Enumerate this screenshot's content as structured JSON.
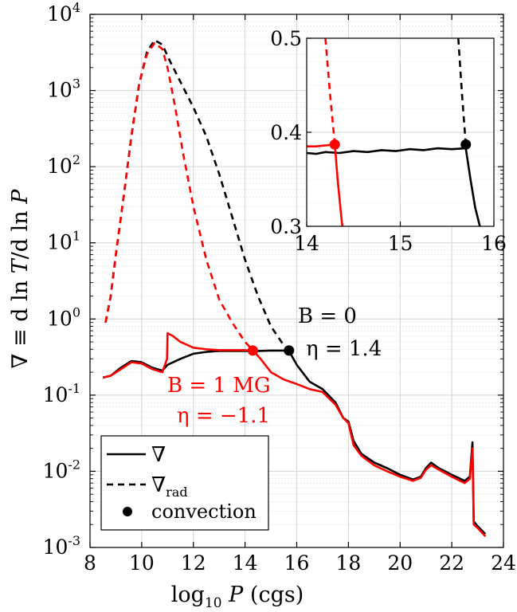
{
  "chart_data": [
    {
      "type": "line",
      "xlabel": "log₁₀ P  (cgs)",
      "ylabel": "∇ ≡ d ln T / d ln P",
      "xlim": [
        8,
        24
      ],
      "ylim": [
        0.001,
        10000
      ],
      "yscale": "log",
      "grid": true,
      "xticks": [
        8,
        10,
        12,
        14,
        16,
        18,
        20,
        22,
        24
      ],
      "xtick_labels": [
        "8",
        "10",
        "12",
        "14",
        "16",
        "18",
        "20",
        "22",
        "24"
      ],
      "ytick_exponents": [
        -3,
        -2,
        -1,
        0,
        1,
        2,
        3,
        4
      ],
      "legend": {
        "position": "bottom-left",
        "entries": [
          {
            "label": "∇",
            "style": "solid"
          },
          {
            "label": "∇",
            "sub": "rad",
            "style": "dashed"
          },
          {
            "label": "convection",
            "style": "marker"
          }
        ]
      },
      "annotations": [
        {
          "text": "B = 0",
          "color": "#000000"
        },
        {
          "text": "η = 1.4",
          "color": "#000000"
        },
        {
          "text": "B = 1 MG",
          "color": "#ff0000"
        },
        {
          "text": "η = −1.1",
          "color": "#ff0000"
        }
      ],
      "series": [
        {
          "color": "#000000",
          "style": "dashed",
          "x": [
            8.6,
            8.8,
            9.0,
            9.3,
            9.6,
            9.9,
            10.2,
            10.5,
            10.8,
            11.1,
            11.5,
            12.0,
            12.5,
            13.0,
            13.5,
            14.0,
            14.5,
            15.0,
            15.5,
            15.7
          ],
          "y": [
            0.9,
            2.0,
            7,
            40,
            250,
            1200,
            3200,
            4600,
            4000,
            2400,
            1300,
            600,
            250,
            80,
            22,
            6,
            2,
            0.8,
            0.45,
            0.39
          ]
        },
        {
          "color": "#000000",
          "style": "solid",
          "x": [
            8.5,
            8.8,
            9.2,
            9.6,
            10.0,
            10.4,
            10.8,
            11.0,
            11.5,
            12.0,
            12.5,
            13.0,
            13.5,
            14.0,
            14.5,
            15.0,
            15.5,
            15.7,
            16.0,
            16.5,
            17.0,
            17.5,
            17.8,
            18.0,
            18.2,
            18.5,
            19.0,
            19.5,
            20.0,
            20.5,
            20.8,
            21.0,
            21.2,
            21.5,
            22.0,
            22.5,
            22.7,
            22.8,
            22.85,
            23.0,
            23.3
          ],
          "y": [
            0.17,
            0.18,
            0.23,
            0.28,
            0.27,
            0.23,
            0.21,
            0.25,
            0.3,
            0.35,
            0.37,
            0.38,
            0.38,
            0.38,
            0.38,
            0.385,
            0.385,
            0.38,
            0.25,
            0.15,
            0.12,
            0.08,
            0.05,
            0.045,
            0.025,
            0.017,
            0.013,
            0.011,
            0.009,
            0.0078,
            0.0085,
            0.011,
            0.013,
            0.011,
            0.009,
            0.0075,
            0.0085,
            0.024,
            0.0022,
            0.0019,
            0.0015
          ]
        },
        {
          "color": "#ff0000",
          "style": "dashed",
          "x": [
            8.6,
            8.8,
            9.0,
            9.3,
            9.6,
            9.9,
            10.2,
            10.5,
            10.8,
            11.0,
            11.3,
            11.6,
            12.0,
            12.5,
            13.0,
            13.5,
            14.0,
            14.3
          ],
          "y": [
            0.9,
            2.0,
            7,
            40,
            250,
            1200,
            3000,
            4200,
            3500,
            2000,
            600,
            150,
            30,
            6,
            1.8,
            0.9,
            0.5,
            0.39
          ]
        },
        {
          "color": "#ff0000",
          "style": "solid",
          "x": [
            8.5,
            8.8,
            9.2,
            9.6,
            10.0,
            10.4,
            10.8,
            10.98,
            11.0,
            11.2,
            11.5,
            12.0,
            12.5,
            13.0,
            13.5,
            14.0,
            14.3,
            14.6,
            15.0,
            15.5,
            16.0,
            16.5,
            17.0,
            17.5,
            17.8,
            18.0,
            18.2,
            18.5,
            19.0,
            19.5,
            20.0,
            20.5,
            20.8,
            21.0,
            21.2,
            21.5,
            22.0,
            22.5,
            22.7,
            22.8,
            22.85,
            23.0,
            23.3
          ],
          "y": [
            0.17,
            0.18,
            0.22,
            0.27,
            0.26,
            0.22,
            0.2,
            0.3,
            0.65,
            0.6,
            0.5,
            0.42,
            0.4,
            0.39,
            0.39,
            0.39,
            0.385,
            0.3,
            0.2,
            0.16,
            0.14,
            0.12,
            0.11,
            0.075,
            0.05,
            0.043,
            0.022,
            0.016,
            0.012,
            0.01,
            0.0085,
            0.0075,
            0.0082,
            0.0105,
            0.012,
            0.0105,
            0.0085,
            0.007,
            0.008,
            0.02,
            0.002,
            0.0018,
            0.0014
          ]
        }
      ],
      "markers": [
        {
          "x": 15.7,
          "y": 0.385,
          "color": "#000000"
        },
        {
          "x": 14.3,
          "y": 0.385,
          "color": "#ff0000"
        }
      ]
    },
    {
      "type": "line",
      "role": "inset",
      "xlim": [
        14,
        16
      ],
      "ylim": [
        0.3,
        0.5
      ],
      "xticks": [
        14,
        15,
        16
      ],
      "xtick_labels": [
        "14",
        "15",
        "16"
      ],
      "yticks": [
        0.3,
        0.4,
        0.5
      ],
      "ytick_labels": [
        "0.3",
        "0.4",
        "0.5"
      ],
      "grid": true,
      "series": [
        {
          "color": "#000000",
          "style": "dashed",
          "x": [
            15.62,
            15.66,
            15.7
          ],
          "y": [
            0.5,
            0.44,
            0.387
          ]
        },
        {
          "color": "#000000",
          "style": "solid",
          "x": [
            14.0,
            14.1,
            14.2,
            14.35,
            14.5,
            14.65,
            14.8,
            14.95,
            15.1,
            15.25,
            15.4,
            15.55,
            15.7,
            15.75,
            15.8,
            15.85
          ],
          "y": [
            0.378,
            0.377,
            0.379,
            0.378,
            0.38,
            0.379,
            0.381,
            0.38,
            0.382,
            0.381,
            0.383,
            0.382,
            0.383,
            0.35,
            0.32,
            0.3
          ]
        },
        {
          "color": "#ff0000",
          "style": "dashed",
          "x": [
            14.2,
            14.25,
            14.3
          ],
          "y": [
            0.5,
            0.44,
            0.387
          ]
        },
        {
          "color": "#ff0000",
          "style": "solid",
          "x": [
            14.0,
            14.1,
            14.2,
            14.3,
            14.33,
            14.36,
            14.38
          ],
          "y": [
            0.385,
            0.385,
            0.386,
            0.387,
            0.35,
            0.32,
            0.3
          ]
        }
      ],
      "markers": [
        {
          "x": 15.7,
          "y": 0.387,
          "color": "#000000"
        },
        {
          "x": 14.3,
          "y": 0.387,
          "color": "#ff0000"
        }
      ]
    }
  ]
}
